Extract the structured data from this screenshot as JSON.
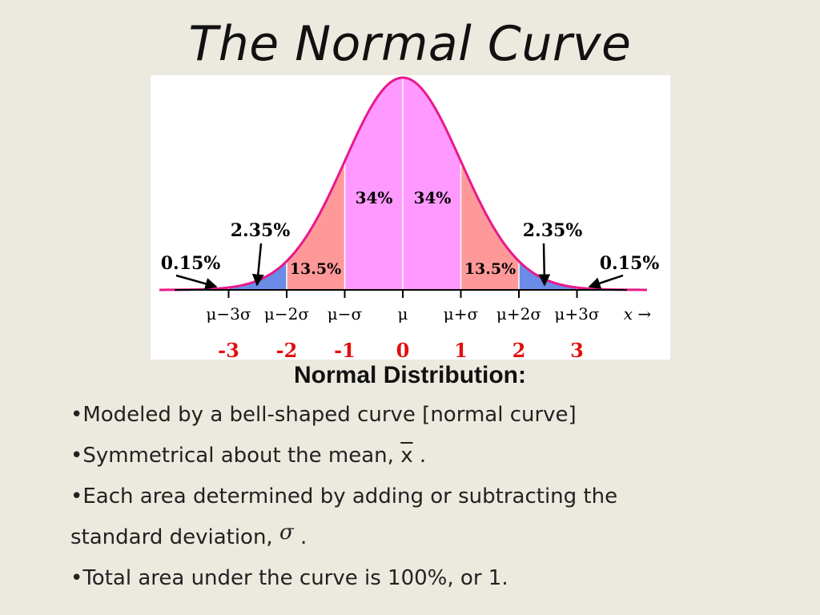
{
  "slide": {
    "title": "The Normal Curve",
    "section_heading": "Normal Distribution:",
    "bullets": {
      "b1": "•Modeled by a bell-shaped curve [normal curve]",
      "b2_text": "•Symmetrical about the mean,",
      "b2_symbol": "x",
      "b2_end": ".",
      "b3_line1": "•Each area determined by adding or subtracting the",
      "b3_line2": "standard deviation,",
      "b3_symbol": "σ",
      "b3_end": ".",
      "b4": "•Total area under the curve is 100%, or 1."
    }
  },
  "diagram": {
    "axis_labels": [
      "μ−3σ",
      "μ−2σ",
      "μ−σ",
      "μ",
      "μ+σ",
      "μ+2σ",
      "μ+3σ"
    ],
    "axis_variable": "x →",
    "z_labels": [
      "-3",
      "-2",
      "-1",
      "0",
      "1",
      "2",
      "3"
    ],
    "region_labels": {
      "left_tail": "0.15%",
      "left_outer": "2.35%",
      "left_mid": "13.5%",
      "left_center": "34%",
      "right_center": "34%",
      "right_mid": "13.5%",
      "right_outer": "2.35%",
      "right_tail": "0.15%"
    },
    "colors": {
      "curve": "#e8198b",
      "center_fill": "#ff99ff",
      "mid_fill": "#ff9999",
      "outer_fill": "#6b8ce6",
      "tail_fill": "#ff9999",
      "z_label": "#e01010"
    }
  }
}
